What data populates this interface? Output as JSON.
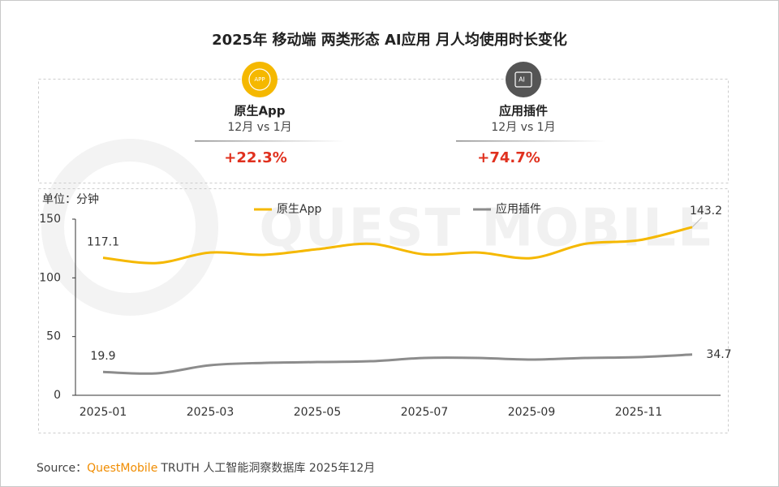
{
  "chart_data": {
    "type": "line",
    "title": "2025年 移动端 两类形态 AI应用 月人均使用时长变化",
    "y_label": "单位：分钟",
    "watermark": "QUEST MOBILE",
    "categories": [
      "2025-01",
      null,
      "2025-03",
      null,
      "2025-05",
      null,
      "2025-07",
      null,
      "2025-09",
      null,
      "2025-11",
      null
    ],
    "series": [
      {
        "name": "原生App",
        "color": "#f5b800",
        "values": [
          117.1,
          112.6,
          121.6,
          119.6,
          124.4,
          129,
          120,
          121.6,
          116.8,
          129,
          132,
          143.2
        ],
        "value_labels": [
          "117.1",
          null,
          null,
          null,
          null,
          null,
          null,
          null,
          null,
          null,
          null,
          "143.2"
        ]
      },
      {
        "name": "应用插件",
        "color": "#8c8c8c",
        "values": [
          19.9,
          18.7,
          25.6,
          27.6,
          28.3,
          29,
          31.8,
          31.8,
          30.4,
          31.8,
          32.5,
          34.7
        ],
        "value_labels": [
          "19.9",
          null,
          null,
          null,
          null,
          null,
          null,
          null,
          null,
          null,
          null,
          "34.7"
        ]
      }
    ],
    "ylim": [
      0,
      150
    ],
    "yticks": [
      0,
      50,
      100,
      150
    ],
    "grid": false
  },
  "summary": [
    {
      "icon": "APP",
      "name": "原生App",
      "period": "12月 vs 1月",
      "change": "+22.3%"
    },
    {
      "icon": "AI",
      "name": "应用插件",
      "period": "12月 vs 1月",
      "change": "+74.7%"
    }
  ],
  "source": {
    "prefix": "Source：",
    "brand": "QuestMobile",
    "text": "TRUTH 人工智能洞察数据库 2025年12月"
  }
}
